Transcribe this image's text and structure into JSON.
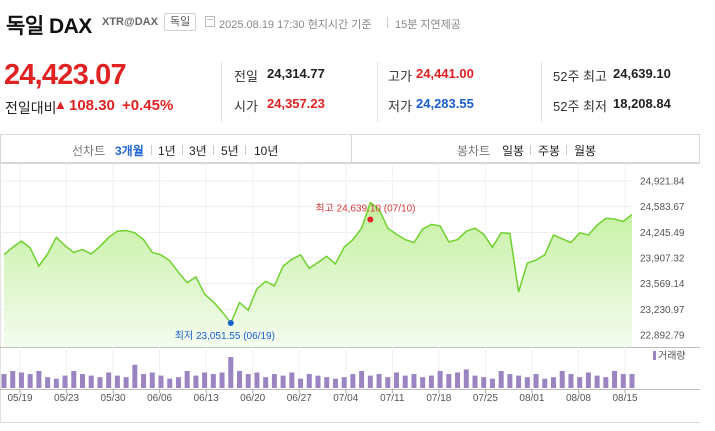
{
  "header": {
    "title": "독일 DAX",
    "code": "XTR@DAX",
    "country_badge": "독일",
    "timestamp": "2025.08.19 17:30 현지시간 기준",
    "delay_note": "15분 지연제공",
    "calendar_icon": "calendar-icon"
  },
  "quote": {
    "price": "24,423.07",
    "change_label": "전일대비",
    "change_arrow": "▲",
    "change_value": "108.30",
    "change_percent": "+0.45%",
    "stats": {
      "prev_label": "전일",
      "prev_value": "24,314.77",
      "open_label": "시가",
      "open_value": "24,357.23",
      "high_label": "고가",
      "high_value": "24,441.00",
      "low_label": "저가",
      "low_value": "24,283.55",
      "w52_high_label": "52주 최고",
      "w52_high_value": "24,639.10",
      "w52_low_label": "52주 최저",
      "w52_low_value": "18,208.84"
    },
    "colors": {
      "up": "#e12222",
      "down": "#1a5fcf"
    }
  },
  "toolbar": {
    "line_chart_label": "선차트",
    "periods": [
      "3개월",
      "1년",
      "3년",
      "5년",
      "10년"
    ],
    "selected_period": "3개월",
    "candle_chart_label": "봉차트",
    "candle_periods": [
      "일봉",
      "주봉",
      "월봉"
    ]
  },
  "chart_data": {
    "type": "area",
    "x_ticks": [
      "05/19",
      "05/23",
      "05/30",
      "06/06",
      "06/13",
      "06/20",
      "06/27",
      "07/04",
      "07/11",
      "07/18",
      "07/25",
      "08/01",
      "08/08",
      "08/15"
    ],
    "y_ticks": [
      "24,921.84",
      "24,583.67",
      "24,245.49",
      "23,907.32",
      "23,569.14",
      "23,230.97",
      "22,892.79"
    ],
    "ylim": [
      22892.79,
      24921.84
    ],
    "series": [
      {
        "values": [
          23950,
          24050,
          24130,
          24040,
          23800,
          23960,
          24180,
          24070,
          23980,
          24020,
          23960,
          24060,
          24180,
          24260,
          24270,
          24240,
          24150,
          23980,
          23950,
          23870,
          23720,
          23580,
          23660,
          23430,
          23330,
          23200,
          23051.55,
          23320,
          23220,
          23500,
          23600,
          23540,
          23800,
          23890,
          23950,
          23770,
          23850,
          23930,
          23830,
          24050,
          24150,
          24300,
          24639.1,
          24550,
          24300,
          24220,
          24150,
          24110,
          24290,
          24350,
          24330,
          24120,
          24150,
          24260,
          24300,
          24220,
          24050,
          24240,
          24230,
          23460,
          23840,
          23880,
          23950,
          24210,
          24160,
          24110,
          24240,
          24210,
          24340,
          24430,
          24420,
          24390,
          24480
        ],
        "volumes": [
          0.45,
          0.55,
          0.5,
          0.45,
          0.55,
          0.35,
          0.3,
          0.4,
          0.55,
          0.45,
          0.4,
          0.35,
          0.5,
          0.4,
          0.35,
          0.75,
          0.45,
          0.5,
          0.4,
          0.3,
          0.35,
          0.55,
          0.4,
          0.5,
          0.45,
          0.5,
          1.0,
          0.55,
          0.45,
          0.5,
          0.35,
          0.45,
          0.4,
          0.5,
          0.3,
          0.45,
          0.4,
          0.35,
          0.3,
          0.35,
          0.45,
          0.55,
          0.4,
          0.45,
          0.35,
          0.5,
          0.4,
          0.45,
          0.35,
          0.4,
          0.55,
          0.45,
          0.5,
          0.6,
          0.4,
          0.35,
          0.3,
          0.55,
          0.45,
          0.4,
          0.35,
          0.45,
          0.3,
          0.35,
          0.55,
          0.45,
          0.35,
          0.5,
          0.4,
          0.35,
          0.55,
          0.45,
          0.45
        ]
      }
    ],
    "annotations": {
      "high_text": "최고 24,639.10 (07/10)",
      "low_text": "최저 23,051.55 (06/19)"
    },
    "volume_legend": "거래량",
    "colors": {
      "line": "#6fd12e",
      "fill_top": "#c4f0a0",
      "fill_bottom": "#f4fcef",
      "volume_bar": "#9a84c2",
      "high_dot": "#e12222",
      "low_dot": "#1a5fcf"
    }
  }
}
